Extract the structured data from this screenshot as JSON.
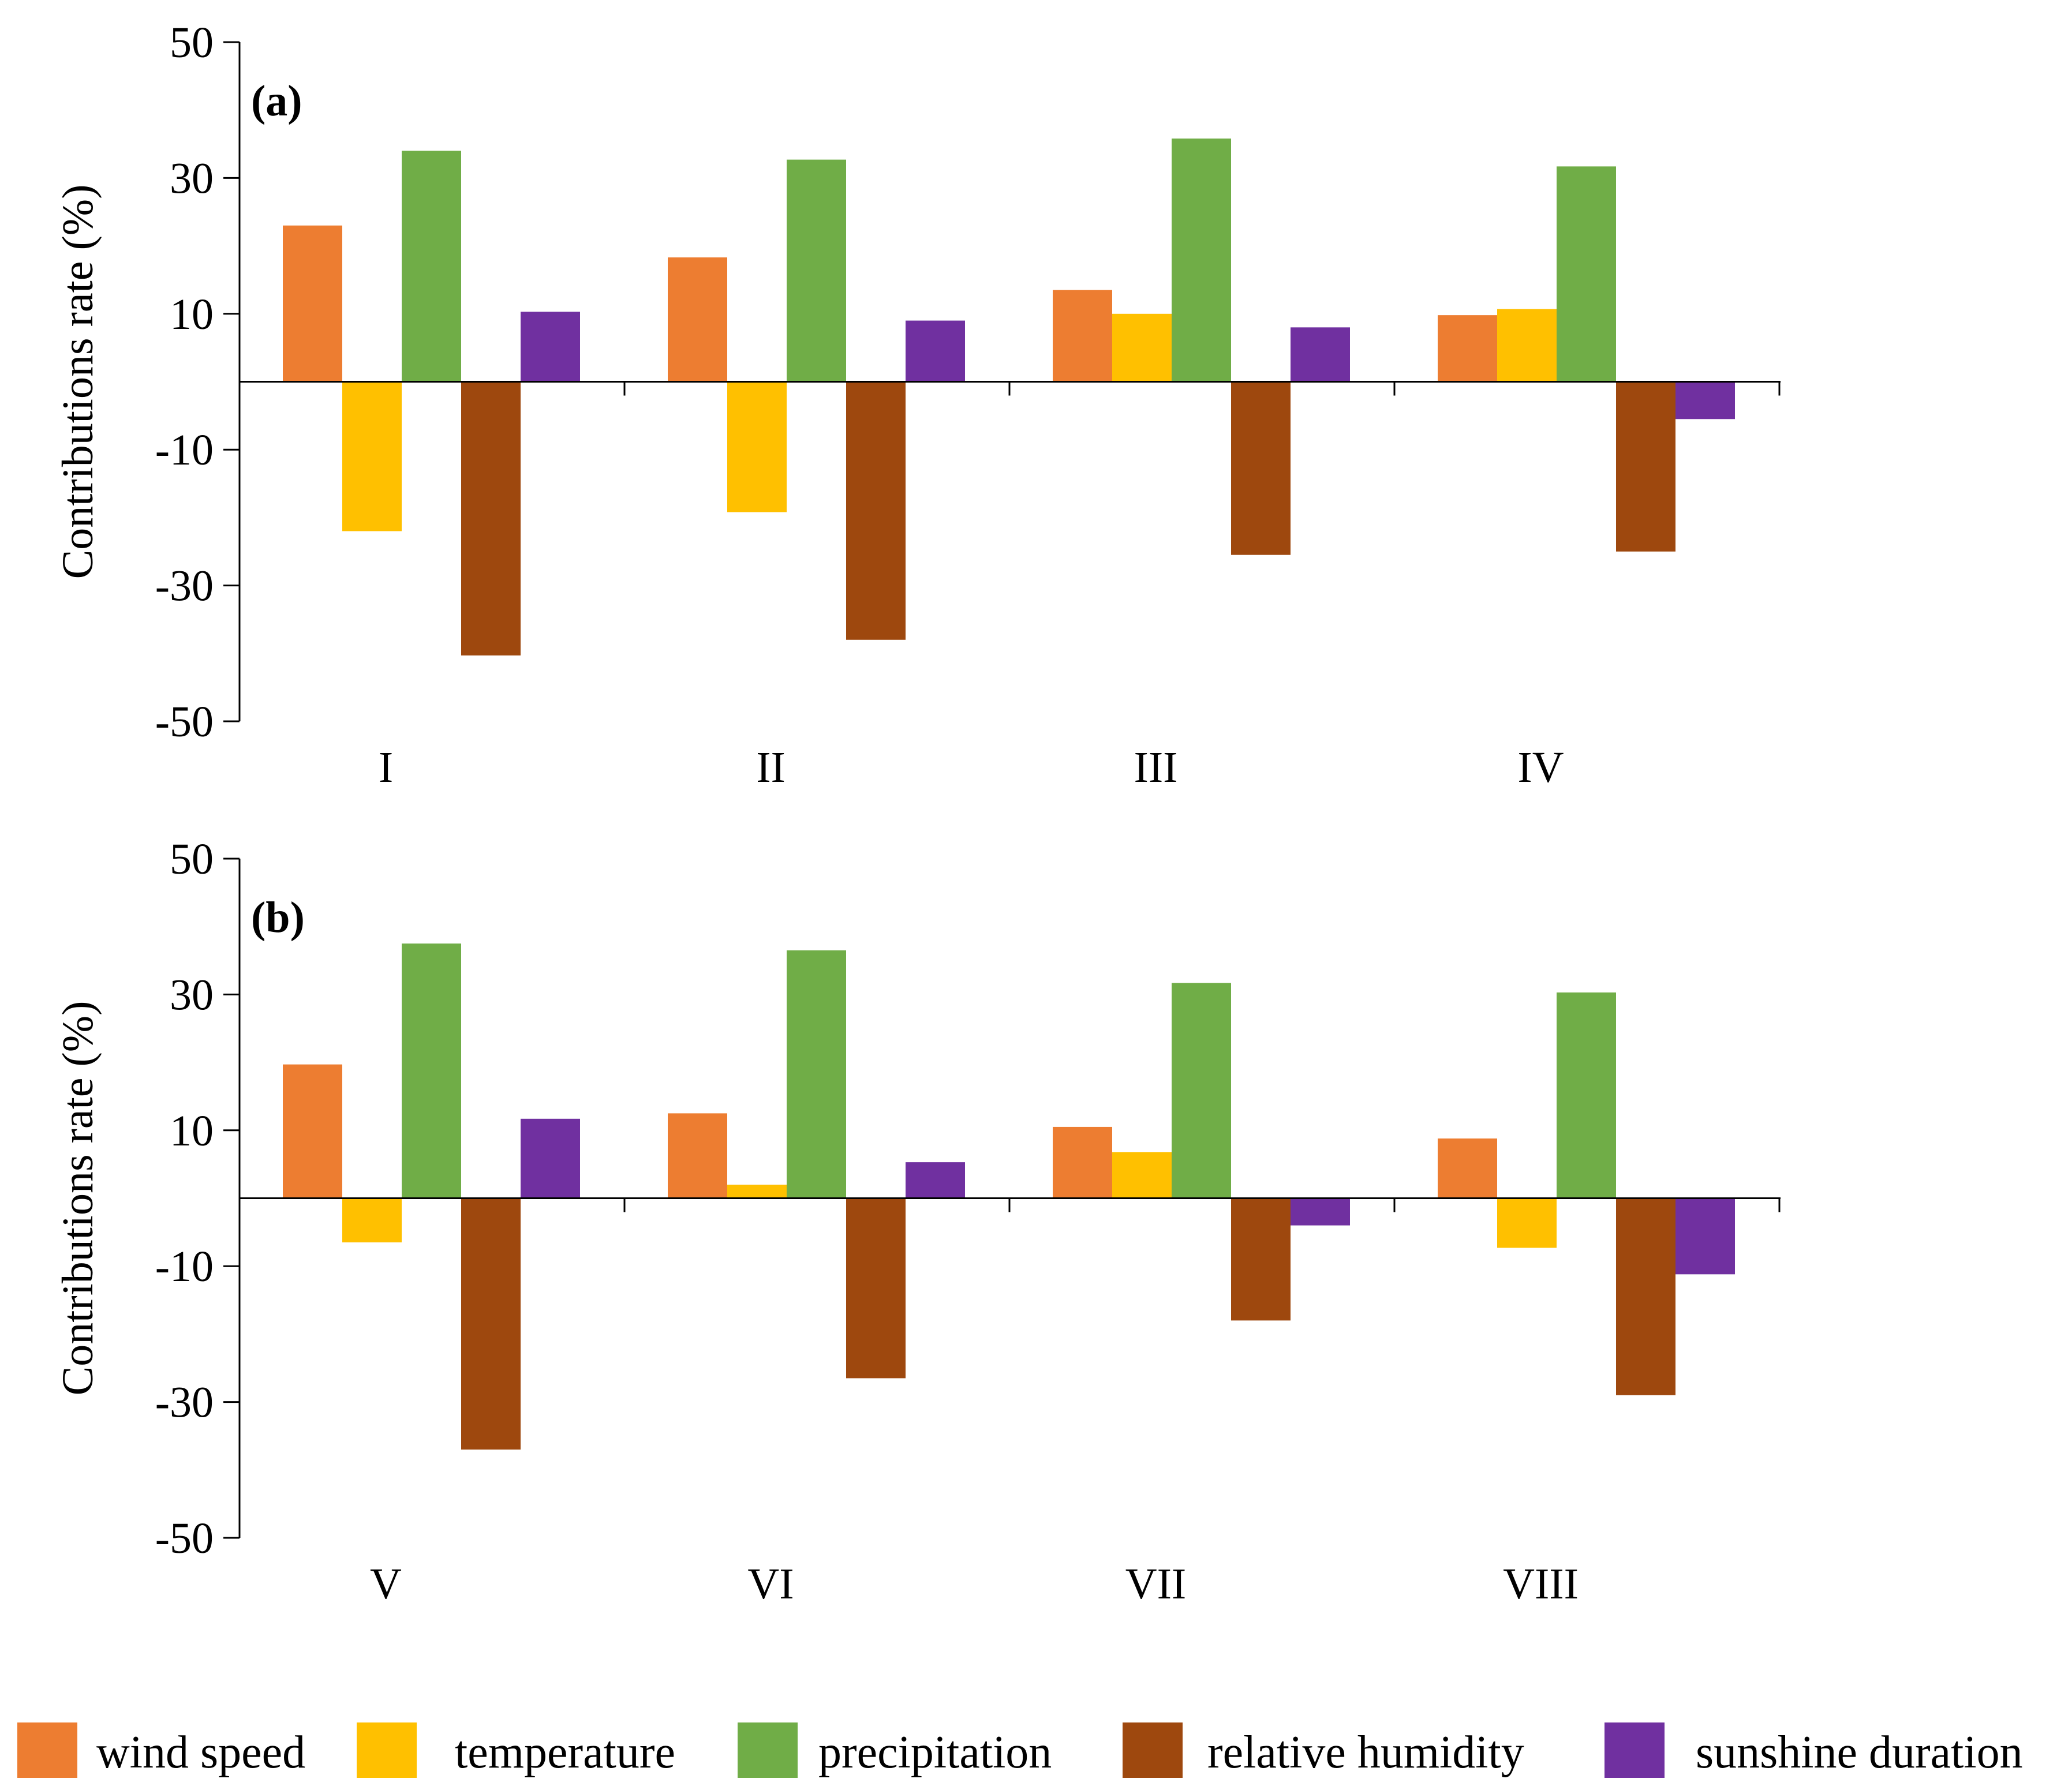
{
  "chart_data": [
    {
      "type": "bar",
      "panel_label": "(a)",
      "categories": [
        "I",
        "II",
        "III",
        "IV"
      ],
      "ylabel": "Contributions rate (%)",
      "ylim": [
        -50,
        50
      ],
      "yticks": [
        50,
        30,
        10,
        -10,
        -30,
        -50
      ],
      "series": [
        {
          "name": "wind speed",
          "values": [
            23.0,
            18.3,
            13.5,
            9.8
          ]
        },
        {
          "name": "temperature",
          "values": [
            -22.0,
            -19.2,
            10.0,
            10.7
          ]
        },
        {
          "name": "precipitation",
          "values": [
            34.0,
            32.7,
            35.8,
            31.7
          ]
        },
        {
          "name": "relative humidity",
          "values": [
            -40.3,
            -38.0,
            -25.5,
            -25.0
          ]
        },
        {
          "name": "sunshine duration",
          "values": [
            10.3,
            9.0,
            8.0,
            -5.5
          ]
        }
      ]
    },
    {
      "type": "bar",
      "panel_label": "(b)",
      "categories": [
        "V",
        "VI",
        "VII",
        "VIII"
      ],
      "ylabel": "Contributions rate (%)",
      "ylim": [
        -50,
        50
      ],
      "yticks": [
        50,
        30,
        10,
        -10,
        -30,
        -50
      ],
      "series": [
        {
          "name": "wind speed",
          "values": [
            19.7,
            12.5,
            10.5,
            8.8
          ]
        },
        {
          "name": "temperature",
          "values": [
            -6.5,
            2.0,
            6.8,
            -7.3
          ]
        },
        {
          "name": "precipitation",
          "values": [
            37.5,
            36.5,
            31.7,
            30.3
          ]
        },
        {
          "name": "relative humidity",
          "values": [
            -37.0,
            -26.5,
            -18.0,
            -29.0
          ]
        },
        {
          "name": "sunshine duration",
          "values": [
            11.7,
            5.3,
            -4.0,
            -11.2
          ]
        }
      ]
    }
  ],
  "legend": [
    {
      "label": "wind speed",
      "color": "#ED7D31"
    },
    {
      "label": "temperature",
      "color": "#FFC000"
    },
    {
      "label": "precipitation",
      "color": "#70AD47"
    },
    {
      "label": "relative humidity",
      "color": "#9E480E"
    },
    {
      "label": "sunshine duration",
      "color": "#7030A0"
    }
  ]
}
